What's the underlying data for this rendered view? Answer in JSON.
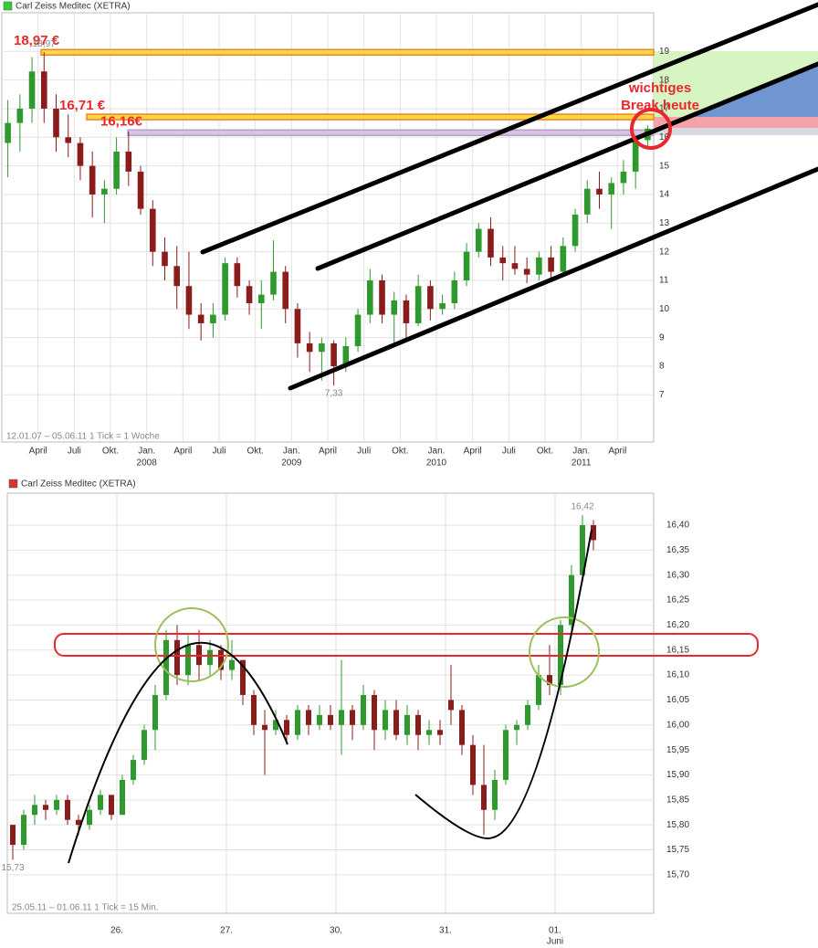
{
  "chart_data": [
    {
      "type": "candlestick",
      "title": "Carl Zeiss Meditec (XETRA)",
      "legend_color": "#33cc33",
      "categories": [
        null,
        null,
        null,
        "April",
        null,
        null,
        "Juli",
        null,
        null,
        "Okt.",
        null,
        null,
        "Jan.",
        null,
        null,
        "April",
        null,
        null,
        "Juli",
        null,
        null,
        "Okt.",
        null,
        null,
        "Jan.",
        null,
        null,
        "April",
        null,
        null,
        "Juli",
        null,
        null,
        "Okt.",
        null,
        null,
        "Jan.",
        null,
        null,
        "April",
        null,
        null,
        "Juli",
        null,
        null,
        "Okt.",
        null,
        null,
        "Jan.",
        null,
        null,
        "April",
        null,
        null
      ],
      "x_sublabels": [
        null,
        null,
        null,
        null,
        null,
        null,
        null,
        null,
        null,
        null,
        null,
        null,
        "2008",
        null,
        null,
        null,
        null,
        null,
        null,
        null,
        null,
        null,
        null,
        null,
        "2009",
        null,
        null,
        null,
        null,
        null,
        null,
        null,
        null,
        null,
        null,
        null,
        "2010",
        null,
        null,
        null,
        null,
        null,
        null,
        null,
        null,
        null,
        null,
        null,
        "2011",
        null,
        null,
        null,
        null,
        null
      ],
      "open": [
        15.8,
        16.5,
        17,
        18.3,
        17,
        16,
        15.8,
        15,
        14,
        14.2,
        15.5,
        14.8,
        13.5,
        12,
        11.5,
        10.8,
        9.8,
        9.5,
        9.8,
        11.6,
        10.8,
        10.2,
        10.5,
        11.3,
        10,
        8.8,
        8.5,
        8.8,
        8,
        8.7,
        9.8,
        11,
        9.8,
        10.3,
        9.5,
        10.8,
        10,
        10.2,
        11,
        12,
        12.8,
        11.8,
        11.6,
        11.4,
        11.2,
        11.8,
        11.3,
        12.2,
        13.3,
        14.2,
        14,
        14.4,
        14.8,
        15.9
      ],
      "high": [
        17.3,
        17.5,
        18.8,
        18.97,
        17.5,
        16.8,
        16,
        15.5,
        14.5,
        16,
        16.2,
        15,
        13.8,
        12.5,
        12.2,
        12,
        10.2,
        10.2,
        11.8,
        11.8,
        11,
        11,
        12.4,
        11.5,
        10.2,
        9.2,
        9,
        8.9,
        9,
        10,
        11.4,
        11.2,
        10.6,
        10.5,
        11.2,
        11,
        10.5,
        11.3,
        12.3,
        13,
        13.2,
        12.2,
        12.2,
        11.8,
        12,
        12.2,
        12.5,
        13.5,
        14.5,
        14.8,
        14.6,
        15.2,
        16,
        16.42
      ],
      "low": [
        14.6,
        15.5,
        16.5,
        16.5,
        15.5,
        15.3,
        14.5,
        13.2,
        13,
        14,
        14.3,
        13.3,
        11.5,
        11,
        10,
        9.3,
        8.9,
        9,
        9.6,
        10.4,
        9.8,
        9.3,
        10.3,
        9.5,
        8.3,
        7.8,
        7.5,
        7.33,
        7.8,
        8.5,
        9.5,
        9.5,
        8.8,
        9,
        9.4,
        9.6,
        9.8,
        10,
        10.8,
        11.8,
        11.5,
        11,
        11.2,
        10.9,
        11,
        11,
        11.2,
        12,
        13,
        13.5,
        12.8,
        14,
        14.2,
        15.7
      ],
      "close": [
        16.5,
        17,
        18.3,
        17,
        16,
        15.8,
        15,
        14,
        14.2,
        15.5,
        14.8,
        13.5,
        12,
        11.5,
        10.8,
        9.8,
        9.5,
        9.8,
        11.6,
        10.8,
        10.2,
        10.5,
        11.3,
        10,
        8.8,
        8.5,
        8.8,
        8,
        8.7,
        9.8,
        11,
        9.8,
        10.3,
        9.5,
        10.8,
        10,
        10.2,
        11,
        12,
        12.8,
        11.8,
        11.6,
        11.4,
        11.2,
        11.8,
        11.3,
        12.2,
        13.3,
        14.2,
        14,
        14.4,
        14.8,
        15.9,
        16.3
      ],
      "up_color": "#2e9a2e",
      "down_color": "#8b1c1c",
      "ylim": [
        5.35,
        20.35
      ],
      "yticks": [
        7,
        8,
        9,
        10,
        11,
        12,
        13,
        14,
        15,
        16,
        17,
        18,
        19
      ],
      "y_axis_side": "right",
      "grid": true,
      "note": "12.01.07 – 05.06.11   1 Tick = 1 Woche",
      "high_label": {
        "value": 18.97,
        "label": "18,97"
      },
      "low_label": {
        "value": 7.33,
        "label": "7,33"
      },
      "levels": [
        {
          "value": 18.97,
          "label": "18,97 €",
          "color": "#ffd54a"
        },
        {
          "value": 16.71,
          "label": "16,71 €",
          "color": "#ffd54a"
        },
        {
          "value": 16.16,
          "label": "16,16€",
          "color": "#d9c2e6"
        }
      ],
      "annotation": [
        "wichtiges",
        "Break heute"
      ]
    },
    {
      "type": "candlestick",
      "title": "Carl Zeiss Meditec (XETRA)",
      "legend_color": "#d93434",
      "categories": [
        null,
        null,
        null,
        null,
        null,
        null,
        null,
        null,
        null,
        null,
        "26.",
        null,
        null,
        null,
        null,
        null,
        null,
        null,
        null,
        null,
        "27.",
        null,
        null,
        null,
        null,
        null,
        null,
        null,
        null,
        null,
        "30.",
        null,
        null,
        null,
        null,
        null,
        null,
        null,
        null,
        null,
        "31.",
        null,
        null,
        null,
        null,
        null,
        null,
        null,
        null,
        null,
        "01.",
        null,
        null,
        null
      ],
      "x_sublabels": [
        null,
        null,
        null,
        null,
        null,
        null,
        null,
        null,
        null,
        null,
        null,
        null,
        null,
        null,
        null,
        null,
        null,
        null,
        null,
        null,
        null,
        null,
        null,
        null,
        null,
        null,
        null,
        null,
        null,
        null,
        null,
        null,
        null,
        null,
        null,
        null,
        null,
        null,
        null,
        null,
        null,
        null,
        null,
        null,
        null,
        null,
        null,
        null,
        null,
        null,
        "Juni",
        null,
        null,
        null
      ],
      "open": [
        15.8,
        15.76,
        15.82,
        15.84,
        15.83,
        15.85,
        15.81,
        15.8,
        15.83,
        15.86,
        15.82,
        15.89,
        15.93,
        15.99,
        16.06,
        16.17,
        16.1,
        16.16,
        16.12,
        16.15,
        16.11,
        16.13,
        16.06,
        16.0,
        15.99,
        16.01,
        15.98,
        16.03,
        16.0,
        16.02,
        16.0,
        16.03,
        16.0,
        16.06,
        15.99,
        16.03,
        15.98,
        16.02,
        15.98,
        15.99,
        16.05,
        16.03,
        15.96,
        15.88,
        15.83,
        15.89,
        15.99,
        16.0,
        16.04,
        16.1,
        16.08,
        16.2,
        16.3,
        16.4
      ],
      "high": [
        15.8,
        15.83,
        15.86,
        15.85,
        15.86,
        15.86,
        15.82,
        15.84,
        15.87,
        15.86,
        15.9,
        15.94,
        16.0,
        16.08,
        16.19,
        16.2,
        16.18,
        16.19,
        16.17,
        16.16,
        16.17,
        16.13,
        16.07,
        16.03,
        16.03,
        16.02,
        16.04,
        16.04,
        16.04,
        16.04,
        16.13,
        16.04,
        16.08,
        16.07,
        16.05,
        16.05,
        16.04,
        16.03,
        16.01,
        16.01,
        16.12,
        16.04,
        15.98,
        15.96,
        15.91,
        16.0,
        16.01,
        16.05,
        16.12,
        16.16,
        16.21,
        16.32,
        16.42,
        16.41
      ],
      "low": [
        15.73,
        15.75,
        15.8,
        15.81,
        15.82,
        15.8,
        15.78,
        15.79,
        15.82,
        15.81,
        15.82,
        15.88,
        15.92,
        15.95,
        16.05,
        16.08,
        16.08,
        16.09,
        16.1,
        16.09,
        16.09,
        16.04,
        15.98,
        15.9,
        15.98,
        15.96,
        15.97,
        15.98,
        15.99,
        15.99,
        15.94,
        15.97,
        15.99,
        15.95,
        15.97,
        15.97,
        15.96,
        15.95,
        15.96,
        15.96,
        16.0,
        15.94,
        15.86,
        15.78,
        15.81,
        15.88,
        15.96,
        15.99,
        16.03,
        16.06,
        16.06,
        16.19,
        16.29,
        16.35
      ],
      "close": [
        15.76,
        15.82,
        15.84,
        15.83,
        15.85,
        15.81,
        15.8,
        15.83,
        15.86,
        15.82,
        15.89,
        15.93,
        15.99,
        16.06,
        16.17,
        16.1,
        16.16,
        16.12,
        16.15,
        16.11,
        16.13,
        16.06,
        16.0,
        15.99,
        16.01,
        15.98,
        16.03,
        16.0,
        16.02,
        16.0,
        16.03,
        16.0,
        16.06,
        15.99,
        16.03,
        15.98,
        16.02,
        15.98,
        15.99,
        15.98,
        16.03,
        15.96,
        15.88,
        15.83,
        15.89,
        15.99,
        16.0,
        16.04,
        16.1,
        16.08,
        16.2,
        16.3,
        16.4,
        16.37
      ],
      "up_color": "#2e9a2e",
      "down_color": "#8b1c1c",
      "ylim": [
        15.623,
        16.464
      ],
      "yticks": [
        {
          "value": 15.7,
          "label": "15,70"
        },
        {
          "value": 15.75,
          "label": "15,75"
        },
        {
          "value": 15.8,
          "label": "15,80"
        },
        {
          "value": 15.85,
          "label": "15,85"
        },
        {
          "value": 15.9,
          "label": "15,90"
        },
        {
          "value": 15.95,
          "label": "15,95"
        },
        {
          "value": 16.0,
          "label": "16,00"
        },
        {
          "value": 16.05,
          "label": "16,05"
        },
        {
          "value": 16.1,
          "label": "16,10"
        },
        {
          "value": 16.15,
          "label": "16,15"
        },
        {
          "value": 16.2,
          "label": "16,20"
        },
        {
          "value": 16.25,
          "label": "16,25"
        },
        {
          "value": 16.3,
          "label": "16,30"
        },
        {
          "value": 16.35,
          "label": "16,35"
        },
        {
          "value": 16.4,
          "label": "16,40"
        }
      ],
      "y_axis_side": "right",
      "grid": true,
      "note": "25.05.11 – 01.06.11   1 Tick = 15 Min.",
      "high_label": {
        "value": 16.42,
        "label": "16,42"
      },
      "low_label": {
        "value": 15.73,
        "label": "15,73"
      }
    }
  ]
}
